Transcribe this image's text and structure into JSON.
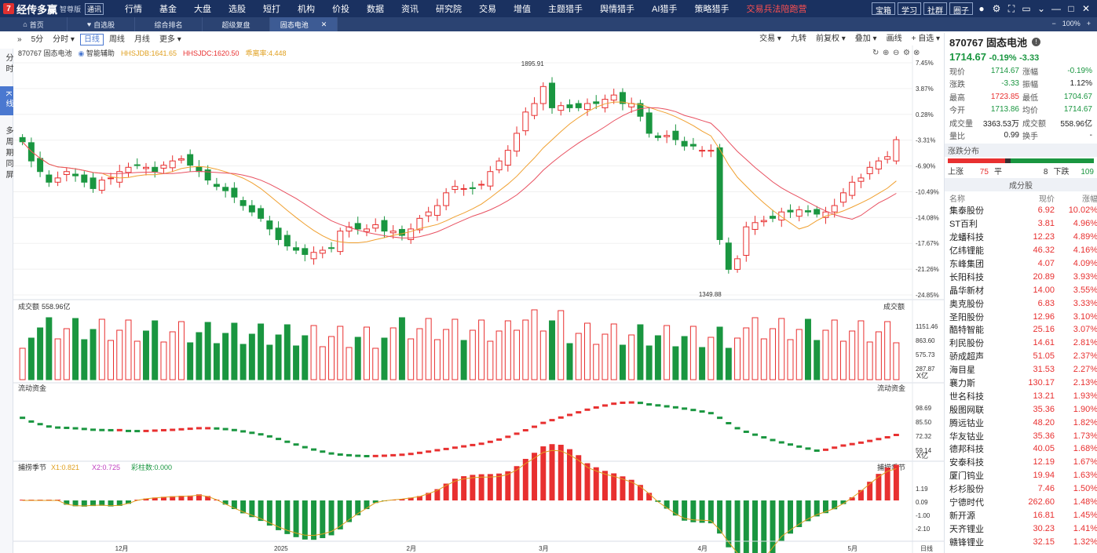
{
  "app": {
    "logo_mark": "7",
    "name": "经传多赢",
    "edition": "智尊版",
    "badge": "通讯"
  },
  "menu": [
    {
      "label": "行情",
      "dot": false
    },
    {
      "label": "基金",
      "dot": false
    },
    {
      "label": "大盘",
      "dot": false
    },
    {
      "label": "选股",
      "dot": false
    },
    {
      "label": "短打",
      "dot": false
    },
    {
      "label": "机构",
      "dot": false
    },
    {
      "label": "价投",
      "dot": false
    },
    {
      "label": "数据",
      "dot": true
    },
    {
      "label": "资讯",
      "dot": false
    },
    {
      "label": "研究院",
      "dot": false
    },
    {
      "label": "交易",
      "dot": false
    },
    {
      "label": "增值",
      "dot": false
    },
    {
      "label": "主题猎手",
      "dot": false
    },
    {
      "label": "舆情猎手",
      "dot": false
    },
    {
      "label": "AI猎手",
      "dot": false
    },
    {
      "label": "策略猎手",
      "dot": false
    },
    {
      "label": "交易兵法陪跑营",
      "dot": false,
      "red": true
    }
  ],
  "top_buttons": [
    "宝箱",
    "学习",
    "社群",
    "圈子"
  ],
  "top_icons": [
    "user-icon",
    "gear-icon",
    "fullscreen-icon",
    "window-icon",
    "chevron-down-icon",
    "minimize-icon",
    "maximize-icon",
    "close-icon"
  ],
  "tabs": [
    {
      "label": "首页",
      "icon": "home-icon"
    },
    {
      "label": "自选股",
      "icon": "heart-icon"
    },
    {
      "label": "综合排名",
      "icon": ""
    },
    {
      "label": "超级复盘",
      "icon": ""
    },
    {
      "label": "固态电池",
      "icon": "",
      "active": true,
      "closable": true
    }
  ],
  "tabright": {
    "minus": "−",
    "zoom": "100%",
    "plus": "+"
  },
  "left_tabs": [
    "分时",
    "K线",
    "多周期同屏"
  ],
  "toolbar": {
    "left": [
      "5分",
      "分时 ▾",
      "日线",
      "周线",
      "月线",
      "更多 ▾"
    ],
    "active": "日线",
    "right": [
      "交易 ▾",
      "九转",
      "前复权 ▾",
      "叠加 ▾",
      "画线",
      "+ 自选 ▾"
    ]
  },
  "main": {
    "code_name": "870767 固态电池",
    "assist": "智能辅助",
    "ind1": "HHSJDB:1641.65",
    "ind2": "HHSJDC:1620.50",
    "ind3": "乖离率:4.448",
    "high_label": "1895.91",
    "low_label": "1349.88",
    "yaxis": [
      "7.45%",
      "3.87%",
      "0.28%",
      "-3.31%",
      "-6.90%",
      "-10.49%",
      "-14.08%",
      "-17.67%",
      "-21.26%",
      "-24.85%"
    ]
  },
  "volume": {
    "title": "成交额",
    "value": "558.96亿",
    "right_label": "成交额",
    "yaxis": [
      "1151.46",
      "863.60",
      "575.73",
      "287.87"
    ],
    "unit": "X亿"
  },
  "flow": {
    "title": "流动资金",
    "right_label": "流动资金",
    "yaxis": [
      "98.69",
      "85.50",
      "72.32",
      "59.14"
    ],
    "unit": "X亿"
  },
  "osc": {
    "title": "捕捞季节",
    "x1": "X1:0.821",
    "x2": "X2:0.725",
    "cai": "彩柱数:0.000",
    "right_label": "捕捞季节",
    "yaxis": [
      "1.19",
      "0.09",
      "-1.00",
      "-2.10"
    ]
  },
  "xaxis": [
    "12月",
    "2025",
    "2月",
    "3月",
    "4月",
    "5月"
  ],
  "xaxis_right": "日线",
  "panel": {
    "code_name": "870767 固态电池",
    "price": "1714.67",
    "change_pct": "-0.19%",
    "change": "-3.33",
    "quote": [
      {
        "k": "现价",
        "v": "1714.67",
        "c": "green"
      },
      {
        "k": "涨幅",
        "v": "-0.19%",
        "c": "green"
      },
      {
        "k": "涨跌",
        "v": "-3.33",
        "c": "green"
      },
      {
        "k": "振幅",
        "v": "1.12%",
        "c": "dark"
      },
      {
        "k": "最高",
        "v": "1723.85",
        "c": "red"
      },
      {
        "k": "最低",
        "v": "1704.67",
        "c": "green"
      },
      {
        "k": "今开",
        "v": "1713.86",
        "c": "green"
      },
      {
        "k": "均价",
        "v": "1714.67",
        "c": "green"
      },
      {
        "k": "成交量",
        "v": "3363.53万",
        "c": "dark"
      },
      {
        "k": "成交额",
        "v": "558.96亿",
        "c": "dark"
      },
      {
        "k": "量比",
        "v": "0.99",
        "c": "dark"
      },
      {
        "k": "换手",
        "v": "-",
        "c": "dark"
      }
    ],
    "dist_title": "涨跌分布",
    "up_label": "上涨",
    "up": "75",
    "flat_label": "平",
    "flat": "8",
    "down_label": "下跌",
    "down": "109",
    "components_title": "成分股",
    "col_headers": [
      "名称",
      "现价",
      "涨幅"
    ],
    "components": [
      [
        "集泰股份",
        "6.92",
        "10.02%"
      ],
      [
        "ST百利",
        "3.81",
        "4.96%"
      ],
      [
        "龙蟠科技",
        "12.23",
        "4.89%"
      ],
      [
        "亿纬锂能",
        "46.32",
        "4.16%"
      ],
      [
        "东峰集团",
        "4.07",
        "4.09%"
      ],
      [
        "长阳科技",
        "20.89",
        "3.93%"
      ],
      [
        "晶华新材",
        "14.00",
        "3.55%"
      ],
      [
        "奥克股份",
        "6.83",
        "3.33%"
      ],
      [
        "圣阳股份",
        "12.96",
        "3.10%"
      ],
      [
        "酷特智能",
        "25.16",
        "3.07%"
      ],
      [
        "利民股份",
        "14.61",
        "2.81%"
      ],
      [
        "骄成超声",
        "51.05",
        "2.37%"
      ],
      [
        "海目星",
        "31.53",
        "2.27%"
      ],
      [
        "襄力斯",
        "130.17",
        "2.13%"
      ],
      [
        "世名科技",
        "13.21",
        "1.93%"
      ],
      [
        "殷图网联",
        "35.36",
        "1.90%"
      ],
      [
        "腾远钴业",
        "48.20",
        "1.82%"
      ],
      [
        "华友钴业",
        "35.36",
        "1.73%"
      ],
      [
        "德邦科技",
        "40.05",
        "1.68%"
      ],
      [
        "安泰科技",
        "12.19",
        "1.67%"
      ],
      [
        "厦门钨业",
        "19.94",
        "1.63%"
      ],
      [
        "杉杉股份",
        "7.46",
        "1.50%"
      ],
      [
        "宁德时代",
        "262.60",
        "1.48%"
      ],
      [
        "新开源",
        "16.81",
        "1.45%"
      ],
      [
        "天齐锂业",
        "30.23",
        "1.41%"
      ],
      [
        "赣锋锂业",
        "32.15",
        "1.32%"
      ]
    ]
  },
  "chart_data": {
    "type": "candlestick",
    "title": "870767 固态电池",
    "xaxis_ticks": [
      "12月",
      "2025",
      "2月",
      "3月",
      "4月",
      "5月"
    ],
    "y_range_pct": [
      -24.85,
      7.45
    ],
    "labeled_high": 1895.91,
    "labeled_low": 1349.88,
    "close_path": [
      1710,
      1665,
      1640,
      1615,
      1625,
      1640,
      1630,
      1615,
      1600,
      1620,
      1625,
      1640,
      1650,
      1655,
      1650,
      1640,
      1655,
      1665,
      1670,
      1655,
      1640,
      1620,
      1605,
      1595,
      1580,
      1560,
      1545,
      1530,
      1505,
      1480,
      1465,
      1455,
      1445,
      1450,
      1455,
      1460,
      1500,
      1510,
      1505,
      1505,
      1515,
      1500,
      1500,
      1490,
      1505,
      1530,
      1545,
      1560,
      1590,
      1605,
      1600,
      1600,
      1610,
      1640,
      1665,
      1690,
      1730,
      1780,
      1800,
      1840,
      1790,
      1795,
      1790,
      1790,
      1800,
      1800,
      1810,
      1820,
      1800,
      1800,
      1770,
      1730,
      1720,
      1725,
      1715,
      1700,
      1700,
      1690,
      1690,
      1480,
      1410,
      1435,
      1510,
      1520,
      1525,
      1530,
      1545,
      1545,
      1550,
      1545,
      1540,
      1545,
      1560,
      1590,
      1615,
      1625,
      1650,
      1665,
      1675,
      1715
    ],
    "volume_yaxis": [
      287.87,
      575.73,
      863.6,
      1151.46
    ],
    "volume_last": 558.96,
    "flow_yaxis": [
      59.14,
      72.32,
      85.5,
      98.69
    ],
    "osc_yaxis": [
      -2.1,
      -1.0,
      0.09,
      1.19
    ]
  }
}
